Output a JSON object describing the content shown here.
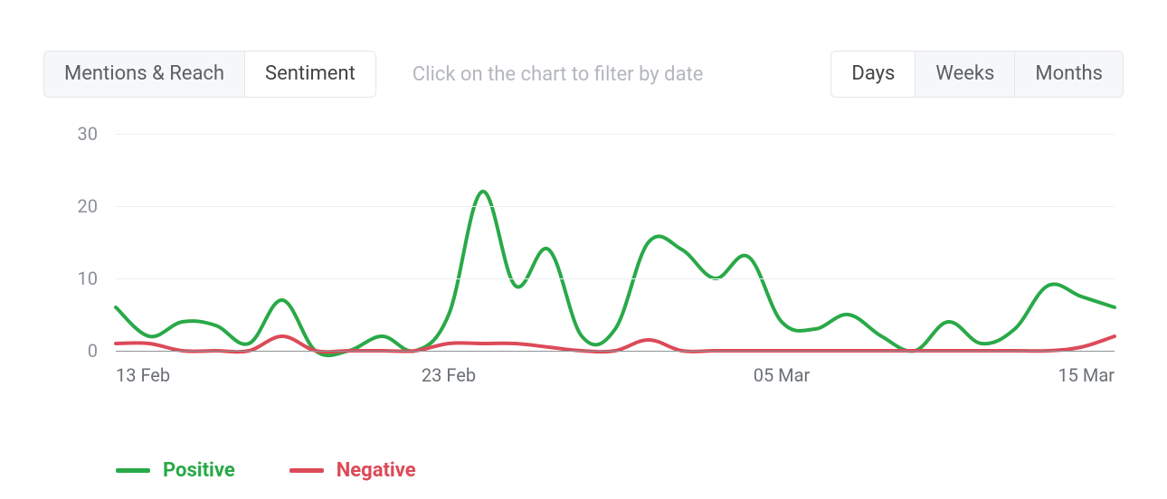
{
  "toolbar": {
    "view_tabs": [
      {
        "label": "Mentions & Reach",
        "active": false
      },
      {
        "label": "Sentiment",
        "active": true
      }
    ],
    "hint": "Click on the chart to filter by date",
    "granularity_tabs": [
      {
        "label": "Days",
        "active": true
      },
      {
        "label": "Weeks",
        "active": false
      },
      {
        "label": "Months",
        "active": false
      }
    ]
  },
  "chart": {
    "type": "line",
    "background_color": "#ffffff",
    "grid_color": "#eceef0",
    "baseline_color": "#8f9397",
    "y_axis": {
      "min": 0,
      "max": 30,
      "tick_step": 10,
      "ticks": [
        0,
        10,
        20,
        30
      ],
      "label_color": "#8a8f96",
      "label_fontsize": 20
    },
    "x_axis": {
      "n_points": 31,
      "tick_indices": [
        0,
        10,
        20,
        30
      ],
      "tick_labels": [
        "13 Feb",
        "23 Feb",
        "05 Mar",
        "15 Mar"
      ],
      "label_color": "#6b7077",
      "label_fontsize": 20
    },
    "line_width": 4,
    "smooth": true,
    "series": [
      {
        "name": "Positive",
        "color": "#29a948",
        "values": [
          6,
          2,
          4,
          3.5,
          1,
          7,
          0,
          0,
          2,
          0,
          5,
          22,
          9,
          14,
          2,
          3,
          15,
          14,
          10,
          13,
          4,
          3,
          5,
          2,
          0,
          4,
          1,
          3,
          9,
          7.5,
          6
        ]
      },
      {
        "name": "Negative",
        "color": "#dc4a58",
        "values": [
          1,
          1,
          0,
          0,
          0,
          2,
          0,
          0,
          0,
          0,
          1,
          1,
          1,
          0.5,
          0,
          0,
          1.5,
          0,
          0,
          0,
          0,
          0,
          0,
          0,
          0,
          0,
          0,
          0,
          0,
          0.5,
          2
        ]
      }
    ],
    "legend": {
      "fontsize": 22,
      "fontweight": 700
    }
  }
}
